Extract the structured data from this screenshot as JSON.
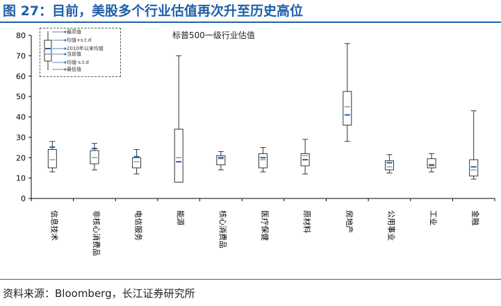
{
  "figure_title": "图 27：目前，美股多个行业估值再次升至历史高位",
  "source": "资料来源：Bloomberg，长江证券研究所",
  "legend_items": [
    "最高值",
    "均值+s.t.d",
    "2010年以来均值",
    "当前值",
    "均值-s.t.d",
    "最低值"
  ],
  "colors": {
    "title": "#1f5fa8",
    "mean_marker": "#1f5fa8",
    "current_marker": "#999999",
    "box": "#333333"
  },
  "chart_data": {
    "type": "boxplot",
    "title": "标普500一级行业估值",
    "ylim": [
      0,
      80
    ],
    "yticks": [
      0,
      10,
      20,
      30,
      40,
      50,
      60,
      70,
      80
    ],
    "categories": [
      "信息技术",
      "非核心消费品",
      "电信服务",
      "能源",
      "核心消费品",
      "医疗保健",
      "原材料",
      "房地产",
      "公用事业",
      "工业",
      "金融"
    ],
    "series": [
      {
        "max": 28,
        "upper": 24,
        "mean": 25.2,
        "current": 19,
        "lower": 15,
        "min": 13
      },
      {
        "max": 27,
        "upper": 23.5,
        "mean": 24.5,
        "current": 20,
        "lower": 17,
        "min": 14
      },
      {
        "max": 24,
        "upper": 20,
        "mean": 20.5,
        "current": 18,
        "lower": 15,
        "min": 12
      },
      {
        "max": 70,
        "upper": 34,
        "mean": 18,
        "current": 20,
        "lower": 8,
        "min": 8
      },
      {
        "max": 23,
        "upper": 21,
        "mean": 20,
        "current": 19.5,
        "lower": 16.5,
        "min": 14
      },
      {
        "max": 25,
        "upper": 22,
        "mean": 20,
        "current": 19,
        "lower": 15,
        "min": 13
      },
      {
        "max": 29,
        "upper": 22,
        "mean": 19,
        "current": 21,
        "lower": 16,
        "min": 12
      },
      {
        "max": 76,
        "upper": 52.5,
        "mean": 41,
        "current": 45,
        "lower": 36,
        "min": 28
      },
      {
        "max": 21.5,
        "upper": 18.5,
        "mean": 17.5,
        "current": 15.5,
        "lower": 14,
        "min": 12.5
      },
      {
        "max": 22,
        "upper": 19.5,
        "mean": 16.5,
        "current": 16,
        "lower": 15,
        "min": 13
      },
      {
        "max": 43,
        "upper": 19,
        "mean": 15.5,
        "current": 14,
        "lower": 11,
        "min": 9.5
      }
    ]
  }
}
